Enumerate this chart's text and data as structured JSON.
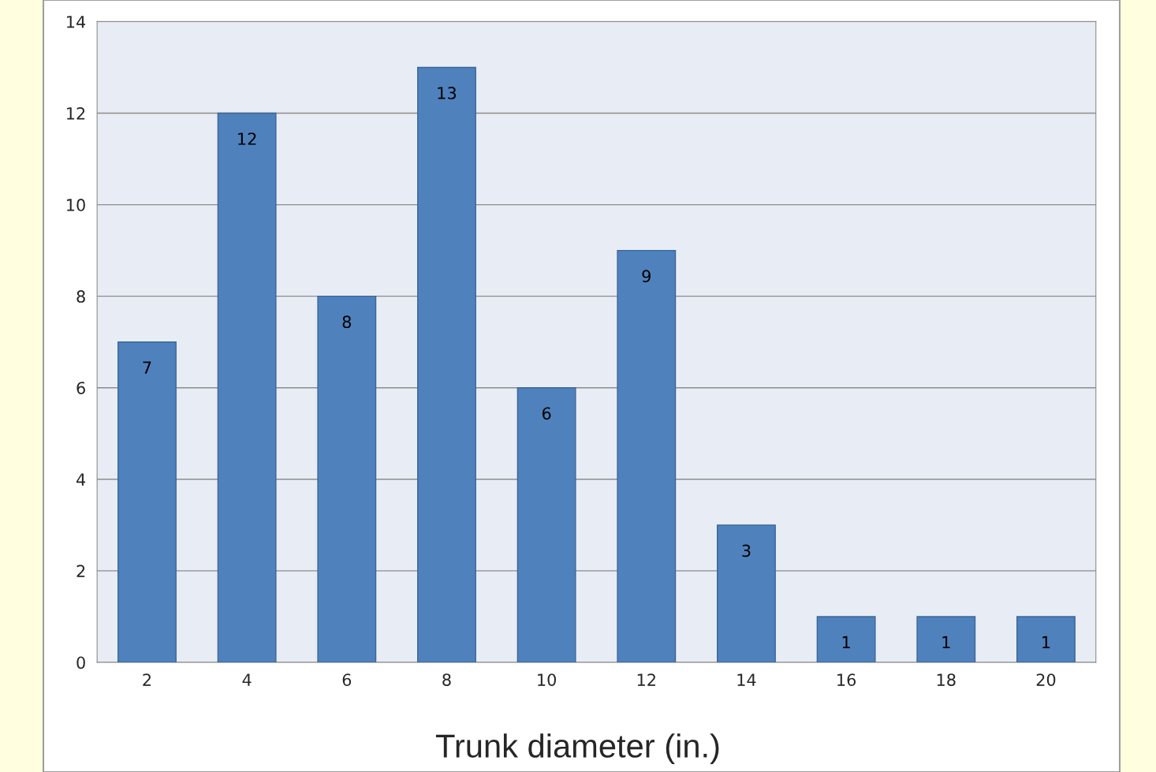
{
  "chart_data": {
    "type": "bar",
    "xlabel": "Trunk diameter (in.)",
    "categories": [
      "2",
      "4",
      "6",
      "8",
      "10",
      "12",
      "14",
      "16",
      "18",
      "20"
    ],
    "values": [
      7,
      12,
      8,
      13,
      6,
      9,
      3,
      1,
      1,
      1
    ],
    "color": "#4f81bd",
    "ylim": [
      0,
      14
    ],
    "yticks": [
      0,
      2,
      4,
      6,
      8,
      10,
      12,
      14
    ],
    "grid": "y",
    "data_labels": true,
    "legend": false
  }
}
